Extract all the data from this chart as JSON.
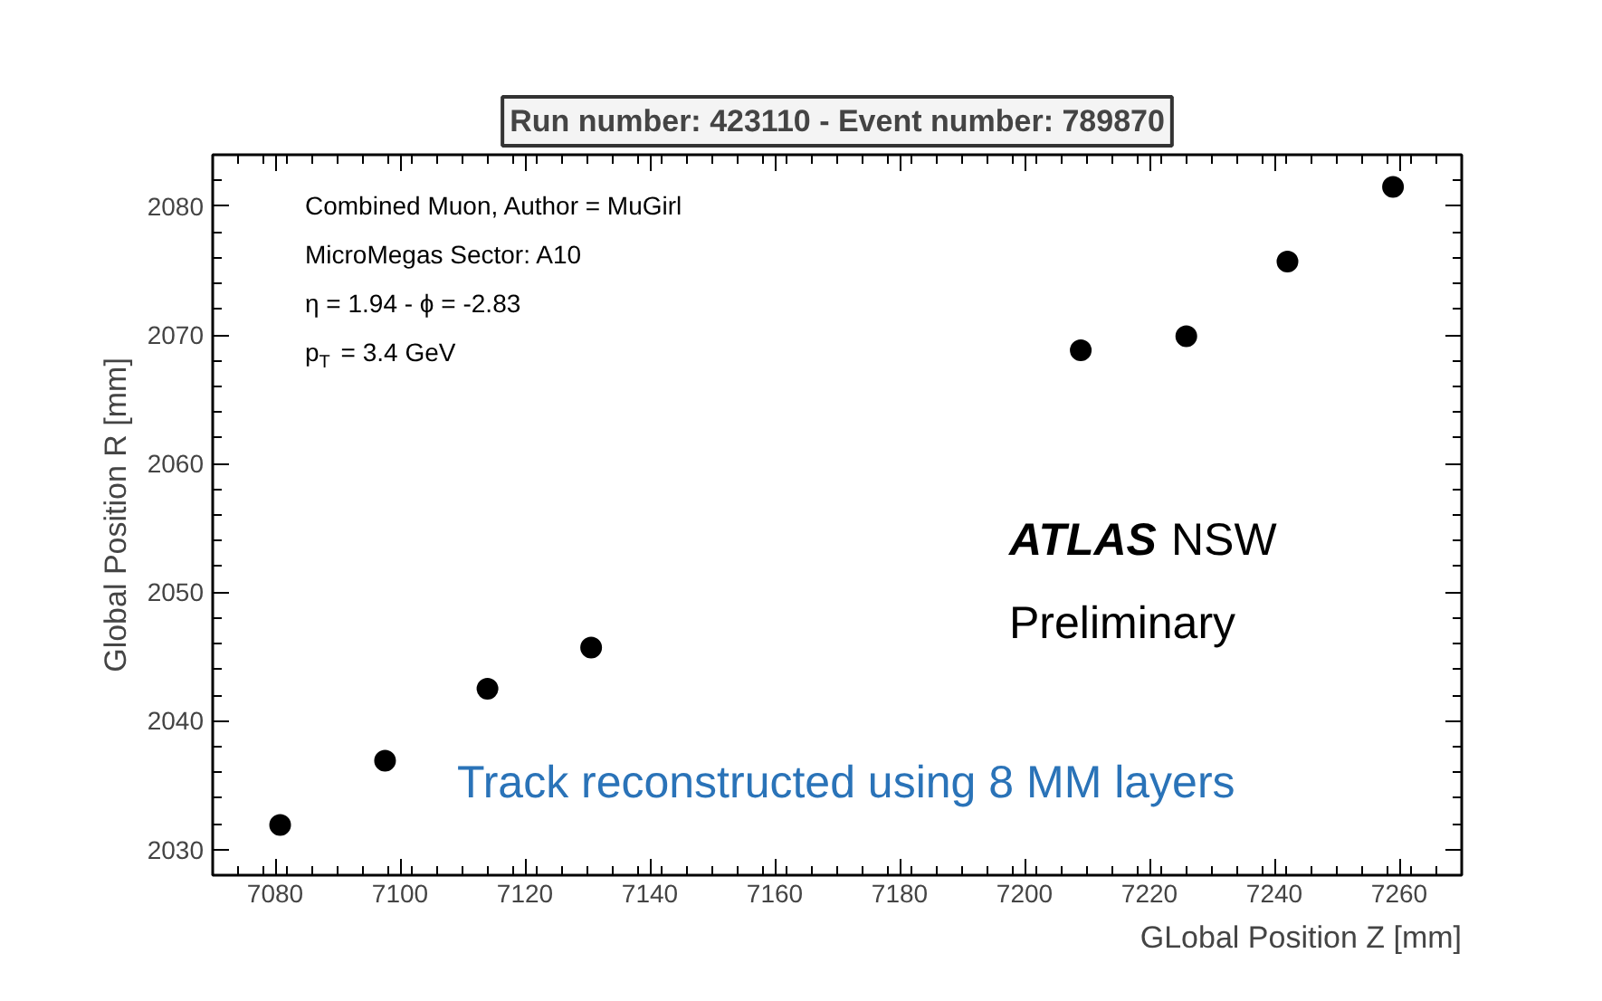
{
  "chart_data": {
    "type": "scatter",
    "title": "Run number: 423110 - Event number: 789870",
    "xlabel": "GLobal Position Z [mm]",
    "ylabel": "Global Position R [mm]",
    "x": [
      7080.8,
      7097.6,
      7114,
      7130.6,
      7209,
      7225.9,
      7242.1,
      7259
    ],
    "series": [
      {
        "color": "#000000",
        "values": [
          2031.9,
          2036.9,
          2042.5,
          2045.7,
          2068.8,
          2069.9,
          2075.7,
          2081.5
        ]
      }
    ],
    "xlim": [
      7070,
      7270
    ],
    "ylim": [
      2028,
      2084
    ],
    "xticks": [
      7080,
      7100,
      7120,
      7140,
      7160,
      7180,
      7200,
      7220,
      7240,
      7260
    ],
    "yticks": [
      2030,
      2040,
      2050,
      2060,
      2070,
      2080
    ],
    "marker": "circle",
    "grid": false,
    "annotations": [
      "Combined Muon, Author = MuGirl",
      "MicroMegas Sector: A10",
      "η = 1.94 - ϕ = -2.83",
      "p$_{T}$ = 3.4 GeV",
      "ATLAS NSW",
      "Preliminary",
      "Track reconstructed using 8 MM layers"
    ]
  }
}
